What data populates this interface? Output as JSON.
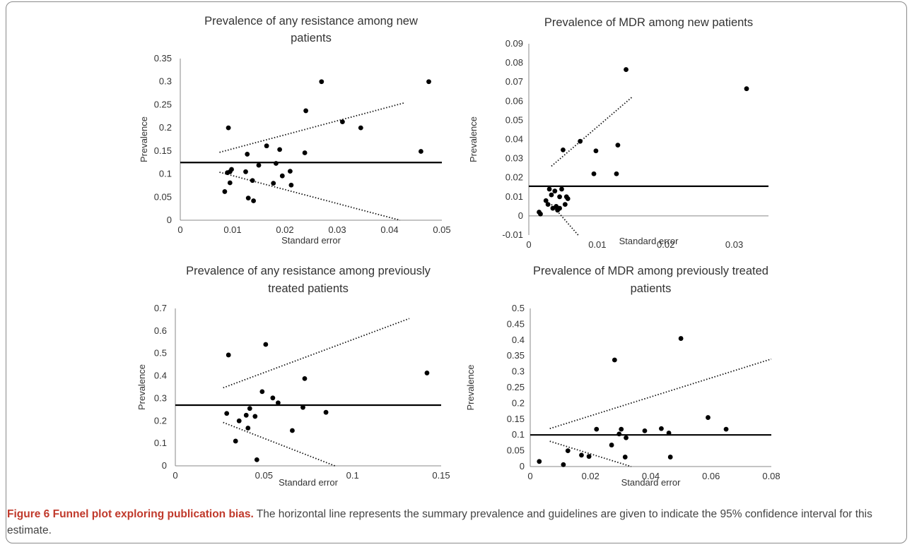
{
  "caption": {
    "bold": "Figure 6 Funnel plot exploring publication bias.",
    "text": " The horizontal line represents the summary prevalence and guidelines are given to indicate the 95% confidence interval for this estimate."
  },
  "chart_data": [
    {
      "type": "scatter",
      "title": [
        "Prevalence of any resistance among new",
        "patients"
      ],
      "xlabel": "Standard error",
      "ylabel": "Prevalence",
      "xlim": [
        0,
        0.05
      ],
      "ylim": [
        0,
        0.35
      ],
      "xticks": [
        "0",
        "0.01",
        "0.02",
        "0.03",
        "0.04",
        "0.05"
      ],
      "yticks": [
        "0",
        "0.05",
        "0.1",
        "0.15",
        "0.2",
        "0.25",
        "0.3",
        "0.35"
      ],
      "summary": 0.125,
      "upper_guide": [
        [
          0.0075,
          0.147
        ],
        [
          0.0428,
          0.254
        ]
      ],
      "lower_guide": [
        [
          0.0075,
          0.104
        ],
        [
          0.042,
          0.0
        ]
      ],
      "points": [
        [
          0.0085,
          0.062
        ],
        [
          0.009,
          0.103
        ],
        [
          0.0092,
          0.2
        ],
        [
          0.0095,
          0.105
        ],
        [
          0.0095,
          0.081
        ],
        [
          0.0098,
          0.11
        ],
        [
          0.0125,
          0.105
        ],
        [
          0.0128,
          0.143
        ],
        [
          0.013,
          0.048
        ],
        [
          0.0138,
          0.086
        ],
        [
          0.014,
          0.042
        ],
        [
          0.015,
          0.119
        ],
        [
          0.0165,
          0.161
        ],
        [
          0.0178,
          0.08
        ],
        [
          0.0183,
          0.123
        ],
        [
          0.019,
          0.153
        ],
        [
          0.0195,
          0.096
        ],
        [
          0.021,
          0.106
        ],
        [
          0.0212,
          0.076
        ],
        [
          0.0238,
          0.146
        ],
        [
          0.024,
          0.237
        ],
        [
          0.027,
          0.3
        ],
        [
          0.031,
          0.213
        ],
        [
          0.0345,
          0.2
        ],
        [
          0.046,
          0.149
        ],
        [
          0.0475,
          0.3
        ]
      ]
    },
    {
      "type": "scatter",
      "title": [
        "Prevalence of MDR among new patients"
      ],
      "xlabel": "Standard error",
      "ylabel": "Prevalence",
      "xlim": [
        0,
        0.035
      ],
      "ylim": [
        -0.01,
        0.09
      ],
      "xticks": [
        "0",
        "0.01",
        "0.02",
        "0.03"
      ],
      "yticks": [
        "-0.01",
        "0",
        "0.01",
        "0.02",
        "0.03",
        "0.04",
        "0.05",
        "0.06",
        "0.07",
        "0.08",
        "0.09"
      ],
      "summary": 0.0155,
      "upper_guide": [
        [
          0.0033,
          0.026
        ],
        [
          0.0152,
          0.0625
        ]
      ],
      "lower_guide": [
        [
          0.0033,
          0.006
        ],
        [
          0.0072,
          -0.01
        ]
      ],
      "points": [
        [
          0.0015,
          0.002
        ],
        [
          0.0017,
          0.001
        ],
        [
          0.0025,
          0.008
        ],
        [
          0.0028,
          0.006
        ],
        [
          0.003,
          0.014
        ],
        [
          0.0033,
          0.011
        ],
        [
          0.0035,
          0.004
        ],
        [
          0.0038,
          0.013
        ],
        [
          0.004,
          0.005
        ],
        [
          0.0042,
          0.003
        ],
        [
          0.0045,
          0.004
        ],
        [
          0.0045,
          0.01
        ],
        [
          0.0048,
          0.014
        ],
        [
          0.005,
          0.0345
        ],
        [
          0.0053,
          0.006
        ],
        [
          0.0055,
          0.01
        ],
        [
          0.0057,
          0.009
        ],
        [
          0.0075,
          0.039
        ],
        [
          0.0095,
          0.022
        ],
        [
          0.0098,
          0.034
        ],
        [
          0.0128,
          0.022
        ],
        [
          0.013,
          0.037
        ],
        [
          0.0142,
          0.0765
        ],
        [
          0.0318,
          0.0665
        ]
      ]
    },
    {
      "type": "scatter",
      "title": [
        "Prevalence of any resistance among previously",
        "treated patients"
      ],
      "xlabel": "Standard error",
      "ylabel": "Prevalence",
      "xlim": [
        0,
        0.15
      ],
      "ylim": [
        0,
        0.7
      ],
      "xticks": [
        "0",
        "0.05",
        "0.1",
        "0.15"
      ],
      "yticks": [
        "0",
        "0.1",
        "0.2",
        "0.3",
        "0.4",
        "0.5",
        "0.6",
        "0.7"
      ],
      "summary": 0.27,
      "upper_guide": [
        [
          0.027,
          0.347
        ],
        [
          0.132,
          0.655
        ]
      ],
      "lower_guide": [
        [
          0.027,
          0.193
        ],
        [
          0.09,
          0.0
        ]
      ],
      "points": [
        [
          0.029,
          0.233
        ],
        [
          0.03,
          0.493
        ],
        [
          0.034,
          0.11
        ],
        [
          0.036,
          0.2
        ],
        [
          0.04,
          0.225
        ],
        [
          0.041,
          0.168
        ],
        [
          0.042,
          0.255
        ],
        [
          0.045,
          0.22
        ],
        [
          0.046,
          0.027
        ],
        [
          0.049,
          0.33
        ],
        [
          0.051,
          0.54
        ],
        [
          0.055,
          0.302
        ],
        [
          0.058,
          0.28
        ],
        [
          0.066,
          0.157
        ],
        [
          0.072,
          0.26
        ],
        [
          0.073,
          0.388
        ],
        [
          0.085,
          0.238
        ],
        [
          0.142,
          0.413
        ]
      ]
    },
    {
      "type": "scatter",
      "title": [
        "Prevalence of MDR among previously treated",
        "patients"
      ],
      "xlabel": "Standard error",
      "ylabel": "Prevalence",
      "xlim": [
        0,
        0.08
      ],
      "ylim": [
        0,
        0.5
      ],
      "xticks": [
        "0",
        "0.02",
        "0.04",
        "0.06",
        "0.08"
      ],
      "yticks": [
        "0",
        "0.05",
        "0.1",
        "0.15",
        "0.2",
        "0.25",
        "0.3",
        "0.35",
        "0.4",
        "0.45",
        "0.5"
      ],
      "summary": 0.1,
      "upper_guide": [
        [
          0.0065,
          0.12
        ],
        [
          0.08,
          0.34
        ]
      ],
      "lower_guide": [
        [
          0.0065,
          0.08
        ],
        [
          0.0335,
          0.0
        ]
      ],
      "points": [
        [
          0.003,
          0.016
        ],
        [
          0.011,
          0.006
        ],
        [
          0.0125,
          0.05
        ],
        [
          0.017,
          0.036
        ],
        [
          0.0195,
          0.032
        ],
        [
          0.022,
          0.118
        ],
        [
          0.027,
          0.068
        ],
        [
          0.028,
          0.337
        ],
        [
          0.0295,
          0.103
        ],
        [
          0.0302,
          0.118
        ],
        [
          0.0315,
          0.03
        ],
        [
          0.0318,
          0.091
        ],
        [
          0.038,
          0.113
        ],
        [
          0.0435,
          0.12
        ],
        [
          0.046,
          0.106
        ],
        [
          0.0465,
          0.03
        ],
        [
          0.05,
          0.405
        ],
        [
          0.059,
          0.155
        ],
        [
          0.065,
          0.118
        ]
      ]
    }
  ]
}
